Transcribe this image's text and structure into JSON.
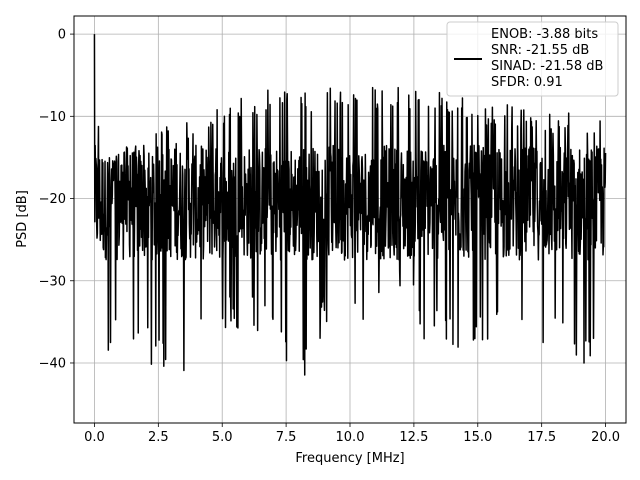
{
  "chart_data": {
    "type": "line",
    "title": "",
    "xlabel": "Frequency [MHz]",
    "ylabel": "PSD [dB]",
    "xlim": [
      -0.8,
      20.8
    ],
    "ylim": [
      -47.3,
      2.2
    ],
    "xticks": [
      0.0,
      2.5,
      5.0,
      7.5,
      10.0,
      12.5,
      15.0,
      17.5,
      20.0
    ],
    "xtick_labels": [
      "0.0",
      "2.5",
      "5.0",
      "7.5",
      "10.0",
      "12.5",
      "15.0",
      "17.5",
      "20.0"
    ],
    "yticks": [
      0,
      -10,
      -20,
      -30,
      -40
    ],
    "ytick_labels": [
      "0",
      "−10",
      "−20",
      "−30",
      "−40"
    ],
    "grid": true,
    "legend_position": "top-right",
    "legend": {
      "lines": [
        "ENOB: -3.88 bits",
        "SNR: -21.55 dB",
        "SINAD: -21.58 dB",
        "SFDR: 0.91"
      ]
    },
    "series": [
      {
        "color": "#000000",
        "description_x_range": [
          0.0,
          20.0
        ],
        "peak": {
          "x": 0.0,
          "y": 0.0
        },
        "envelope": [
          {
            "x": 0.0,
            "max": 0.0,
            "min": -22.0
          },
          {
            "x": 0.2,
            "max": -12.5,
            "min": -33.5
          },
          {
            "x": 0.4,
            "max": -15.5,
            "min": -40.5
          },
          {
            "x": 0.6,
            "max": -15.0,
            "min": -41.5
          },
          {
            "x": 0.8,
            "max": -15.0,
            "min": -36.0
          },
          {
            "x": 1.0,
            "max": -14.5,
            "min": -38.5
          },
          {
            "x": 1.5,
            "max": -13.0,
            "min": -39.0
          },
          {
            "x": 2.0,
            "max": -12.5,
            "min": -40.5
          },
          {
            "x": 2.5,
            "max": -11.5,
            "min": -41.5
          },
          {
            "x": 3.0,
            "max": -11.0,
            "min": -40.5
          },
          {
            "x": 3.5,
            "max": -10.5,
            "min": -42.8
          },
          {
            "x": 4.0,
            "max": -10.0,
            "min": -36.0
          },
          {
            "x": 5.0,
            "max": -8.5,
            "min": -37.0
          },
          {
            "x": 6.0,
            "max": -7.5,
            "min": -35.5
          },
          {
            "x": 7.0,
            "max": -6.5,
            "min": -37.5
          },
          {
            "x": 7.8,
            "max": -7.0,
            "min": -45.0
          },
          {
            "x": 9.0,
            "max": -6.5,
            "min": -36.0
          },
          {
            "x": 10.0,
            "max": -6.5,
            "min": -34.0
          },
          {
            "x": 11.0,
            "max": -6.5,
            "min": -35.5
          },
          {
            "x": 12.0,
            "max": -6.5,
            "min": -33.0
          },
          {
            "x": 13.0,
            "max": -6.5,
            "min": -38.0
          },
          {
            "x": 14.0,
            "max": -7.0,
            "min": -38.0
          },
          {
            "x": 14.5,
            "max": -7.5,
            "min": -45.0
          },
          {
            "x": 15.0,
            "max": -8.0,
            "min": -37.0
          },
          {
            "x": 16.0,
            "max": -8.5,
            "min": -38.0
          },
          {
            "x": 17.0,
            "max": -9.0,
            "min": -38.5
          },
          {
            "x": 17.4,
            "max": -9.5,
            "min": -43.0
          },
          {
            "x": 18.0,
            "max": -9.5,
            "min": -38.5
          },
          {
            "x": 19.0,
            "max": -9.0,
            "min": -42.0
          },
          {
            "x": 19.5,
            "max": -9.5,
            "min": -40.0
          },
          {
            "x": 20.0,
            "max": -9.0,
            "min": -26.0
          }
        ]
      }
    ]
  }
}
